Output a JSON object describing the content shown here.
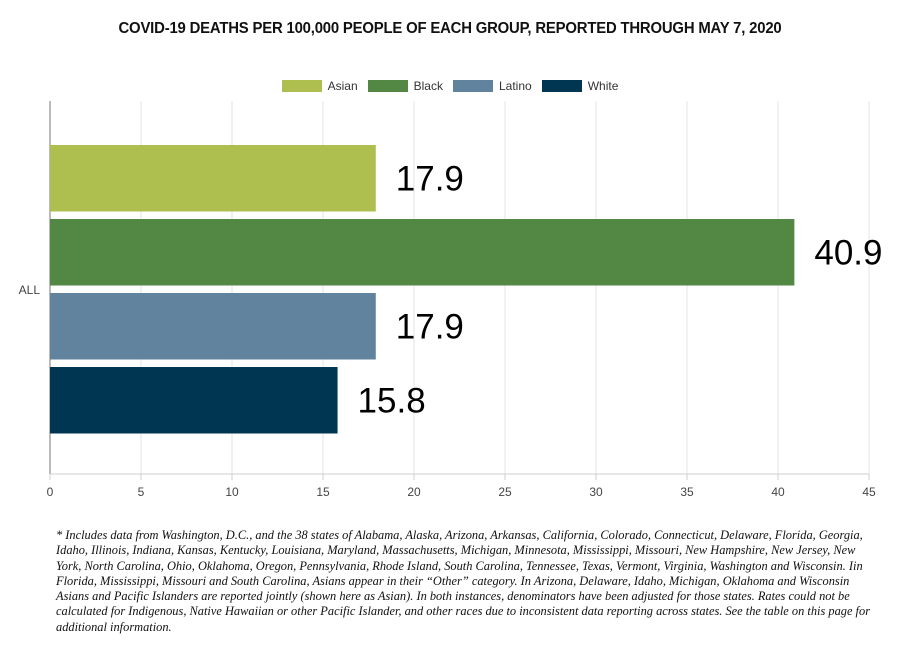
{
  "title": "COVID-19 DEATHS PER 100,000 PEOPLE OF EACH GROUP, REPORTED THROUGH MAY 7, 2020",
  "footnote": "* Includes data from Washington, D.C., and the 38 states of Alabama, Alaska, Arizona, Arkansas, California, Colorado, Connecticut, Delaware, Florida, Georgia, Idaho, Illinois, Indiana, Kansas, Kentucky, Louisiana, Maryland, Massachusetts, Michigan, Minnesota, Mississippi, Missouri, New Hampshire, New Jersey, New York, North Carolina, Ohio, Oklahoma, Oregon, Pennsylvania, Rhode Island, South Carolina, Tennessee, Texas, Vermont, Virginia, Washington and Wisconsin. Iin Florida, Mississippi, Missouri and South Carolina, Asians appear in their “Other” category. In Arizona, Delaware, Idaho, Michigan, Oklahoma and Wisconsin Asians and Pacific Islanders are reported jointly (shown here as Asian). In both instances, denominators have been adjusted for those states. Rates could not be calculated for Indigenous, Native Hawaiian or other Pacific Islander, and other races due to inconsistent data reporting across states. See the table on this page for additional information.",
  "chart_data": {
    "type": "bar",
    "orientation": "horizontal",
    "categories": [
      "ALL"
    ],
    "series": [
      {
        "name": "Asian",
        "values": [
          17.9
        ],
        "label": "17.9",
        "color": "#afbf4f"
      },
      {
        "name": "Black",
        "values": [
          40.9
        ],
        "label": "40.9",
        "color": "#528844"
      },
      {
        "name": "Latino",
        "values": [
          17.9
        ],
        "label": "17.9",
        "color": "#62839d"
      },
      {
        "name": "White",
        "values": [
          15.8
        ],
        "label": "15.8",
        "color": "#003652"
      }
    ],
    "xlim": [
      0,
      45
    ],
    "xticks": [
      "0",
      "5",
      "10",
      "15",
      "20",
      "25",
      "30",
      "35",
      "40",
      "45"
    ],
    "grid": true,
    "legend": "top-center"
  }
}
